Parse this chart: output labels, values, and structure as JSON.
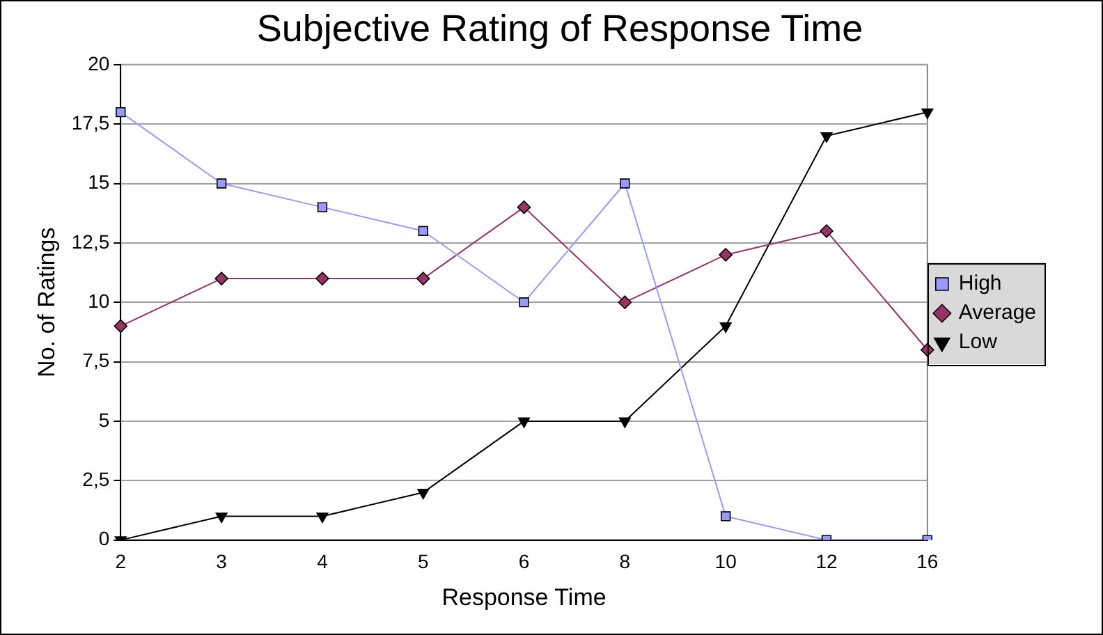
{
  "chart_data": {
    "type": "line",
    "title": "Subjective Rating of Response Time",
    "xlabel": "Response Time",
    "ylabel": "No. of Ratings",
    "categories": [
      "2",
      "3",
      "4",
      "5",
      "6",
      "8",
      "10",
      "12",
      "16"
    ],
    "series": [
      {
        "name": "High",
        "color": "#9999ff",
        "marker": "square",
        "values": [
          18,
          15,
          14,
          13,
          10,
          15,
          1,
          0,
          0
        ]
      },
      {
        "name": "Average",
        "color": "#993366",
        "marker": "diamond",
        "values": [
          9,
          11,
          11,
          11,
          14,
          10,
          12,
          13,
          8
        ]
      },
      {
        "name": "Low",
        "color": "#000000",
        "marker": "triangle",
        "values": [
          0,
          1,
          1,
          2,
          5,
          5,
          9,
          17,
          18
        ]
      }
    ],
    "ylim": [
      0,
      20
    ],
    "yticks": [
      0,
      {
        "value": 2.5,
        "label": "2,5"
      },
      5,
      {
        "value": 7.5,
        "label": "7,5"
      },
      10,
      {
        "value": 12.5,
        "label": "12,5"
      },
      15,
      {
        "value": 17.5,
        "label": "17,5"
      },
      20
    ],
    "grid": "y",
    "legend": "right",
    "line_style": "solid"
  }
}
